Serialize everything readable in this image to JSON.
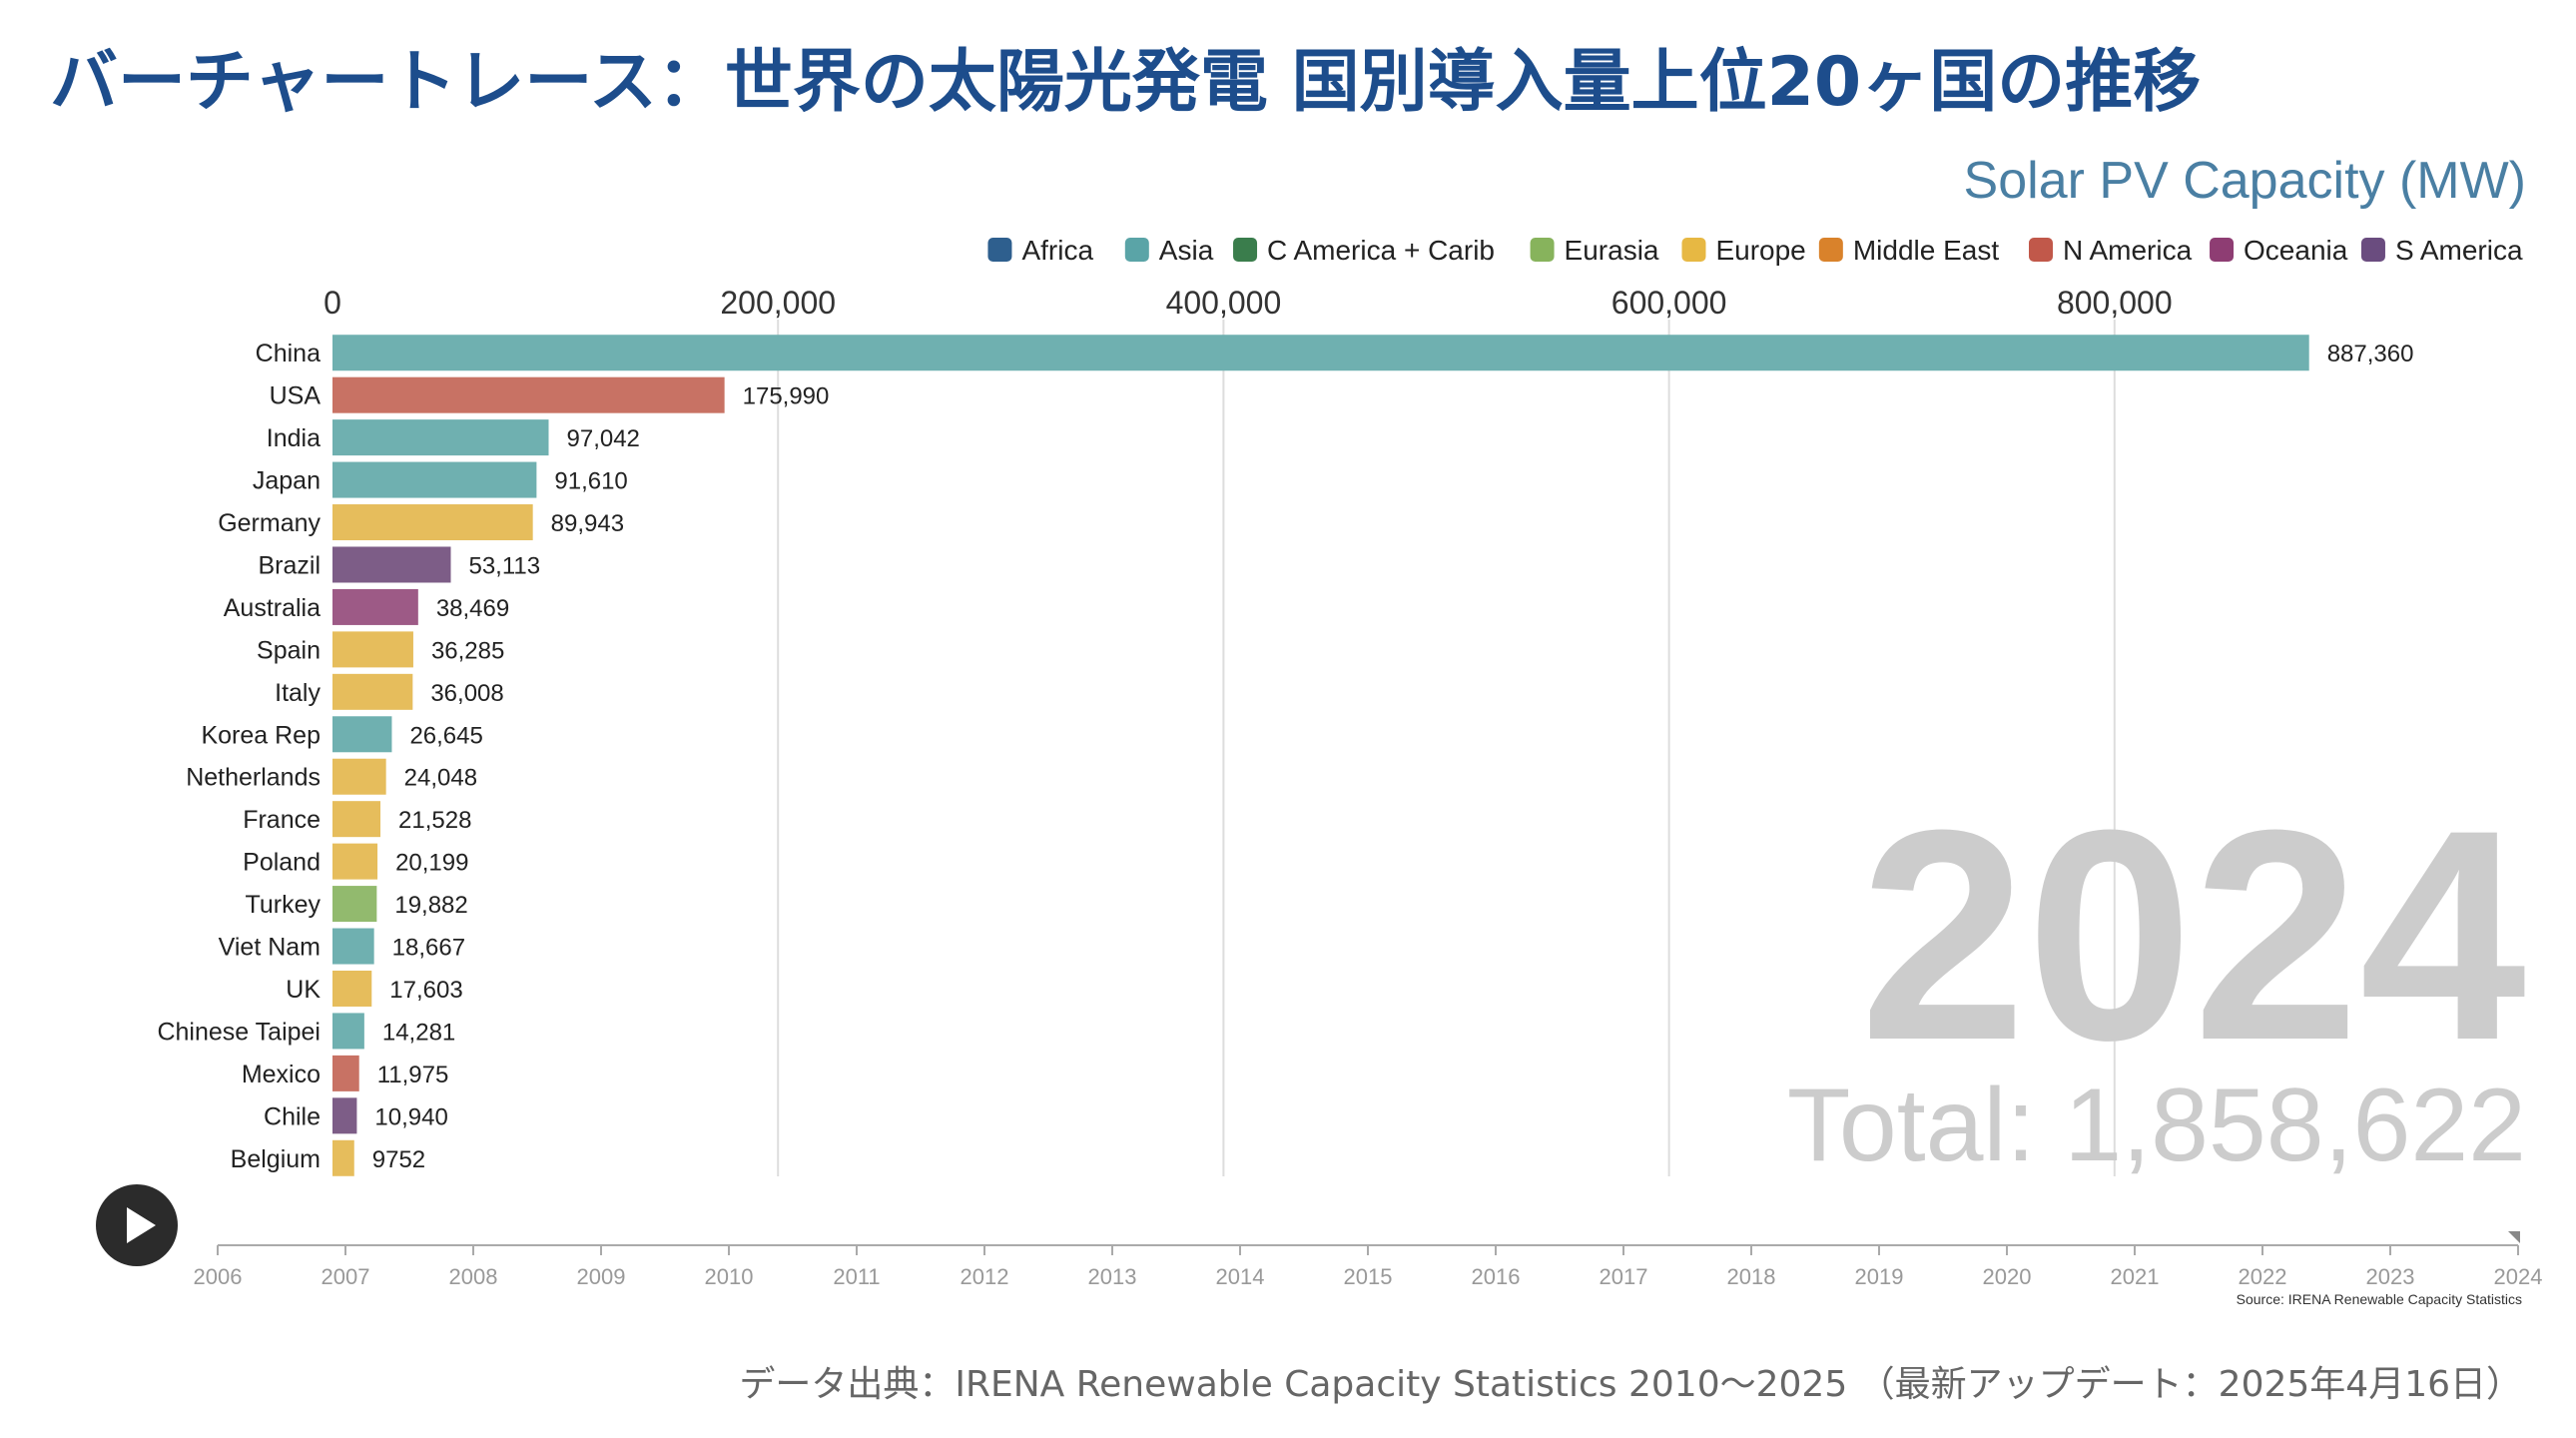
{
  "page": {
    "title": "バーチャートレース：世界の太陽光発電 国別導入量上位20ヶ国の推移",
    "footer_source": "データ出典：IRENA Renewable Capacity Statistics 2010〜2025 （最新アップデート：2025年4月16日）"
  },
  "chart_data": {
    "type": "bar",
    "orientation": "horizontal",
    "title": "Solar PV Capacity (MW)",
    "year": "2024",
    "total_label": "Total: 1,858,622",
    "source_label": "Source: IRENA Renewable Capacity Statistics",
    "x_ticks": [
      "0",
      "200,000",
      "400,000",
      "600,000",
      "800,000"
    ],
    "x_tick_values": [
      0,
      200000,
      400000,
      600000,
      800000
    ],
    "xlim": [
      0,
      987000
    ],
    "grid": true,
    "legend_position": "top-right",
    "legend": [
      {
        "name": "Africa",
        "color": "#2e5f8e"
      },
      {
        "name": "Asia",
        "color": "#5aa4a7"
      },
      {
        "name": "C America + Carib",
        "color": "#3a7d4c"
      },
      {
        "name": "Eurasia",
        "color": "#87b35c"
      },
      {
        "name": "Europe",
        "color": "#e7b843"
      },
      {
        "name": "Middle East",
        "color": "#d9822b"
      },
      {
        "name": "N America",
        "color": "#c1584a"
      },
      {
        "name": "Oceania",
        "color": "#8e3d73"
      },
      {
        "name": "S America",
        "color": "#6a4c7f"
      }
    ],
    "bars": [
      {
        "country": "China",
        "value": 887360,
        "label": "887,360",
        "region": "Asia"
      },
      {
        "country": "USA",
        "value": 175990,
        "label": "175,990",
        "region": "N America"
      },
      {
        "country": "India",
        "value": 97042,
        "label": "97,042",
        "region": "Asia"
      },
      {
        "country": "Japan",
        "value": 91610,
        "label": "91,610",
        "region": "Asia"
      },
      {
        "country": "Germany",
        "value": 89943,
        "label": "89,943",
        "region": "Europe"
      },
      {
        "country": "Brazil",
        "value": 53113,
        "label": "53,113",
        "region": "S America"
      },
      {
        "country": "Australia",
        "value": 38469,
        "label": "38,469",
        "region": "Oceania"
      },
      {
        "country": "Spain",
        "value": 36285,
        "label": "36,285",
        "region": "Europe"
      },
      {
        "country": "Italy",
        "value": 36008,
        "label": "36,008",
        "region": "Europe"
      },
      {
        "country": "Korea Rep",
        "value": 26645,
        "label": "26,645",
        "region": "Asia"
      },
      {
        "country": "Netherlands",
        "value": 24048,
        "label": "24,048",
        "region": "Europe"
      },
      {
        "country": "France",
        "value": 21528,
        "label": "21,528",
        "region": "Europe"
      },
      {
        "country": "Poland",
        "value": 20199,
        "label": "20,199",
        "region": "Europe"
      },
      {
        "country": "Turkey",
        "value": 19882,
        "label": "19,882",
        "region": "Eurasia"
      },
      {
        "country": "Viet Nam",
        "value": 18667,
        "label": "18,667",
        "region": "Asia"
      },
      {
        "country": "UK",
        "value": 17603,
        "label": "17,603",
        "region": "Europe"
      },
      {
        "country": "Chinese Taipei",
        "value": 14281,
        "label": "14,281",
        "region": "Asia"
      },
      {
        "country": "Mexico",
        "value": 11975,
        "label": "11,975",
        "region": "N America"
      },
      {
        "country": "Chile",
        "value": 10940,
        "label": "10,940",
        "region": "S America"
      },
      {
        "country": "Belgium",
        "value": 9752,
        "label": "9752",
        "region": "Europe"
      }
    ],
    "region_colors": {
      "Asia": "#6fb0b0",
      "N America": "#c87264",
      "Europe": "#e6bd5c",
      "S America": "#7d5d87",
      "Oceania": "#9d5a86",
      "Eurasia": "#92ba6e",
      "Africa": "#2e5f8e",
      "C America + Carib": "#3a7d4c",
      "Middle East": "#d9822b"
    }
  },
  "timeline": {
    "years": [
      "2006",
      "2007",
      "2008",
      "2009",
      "2010",
      "2011",
      "2012",
      "2013",
      "2014",
      "2015",
      "2016",
      "2017",
      "2018",
      "2019",
      "2020",
      "2021",
      "2022",
      "2023",
      "2024"
    ],
    "current": "2024",
    "play_icon": "play-icon"
  }
}
